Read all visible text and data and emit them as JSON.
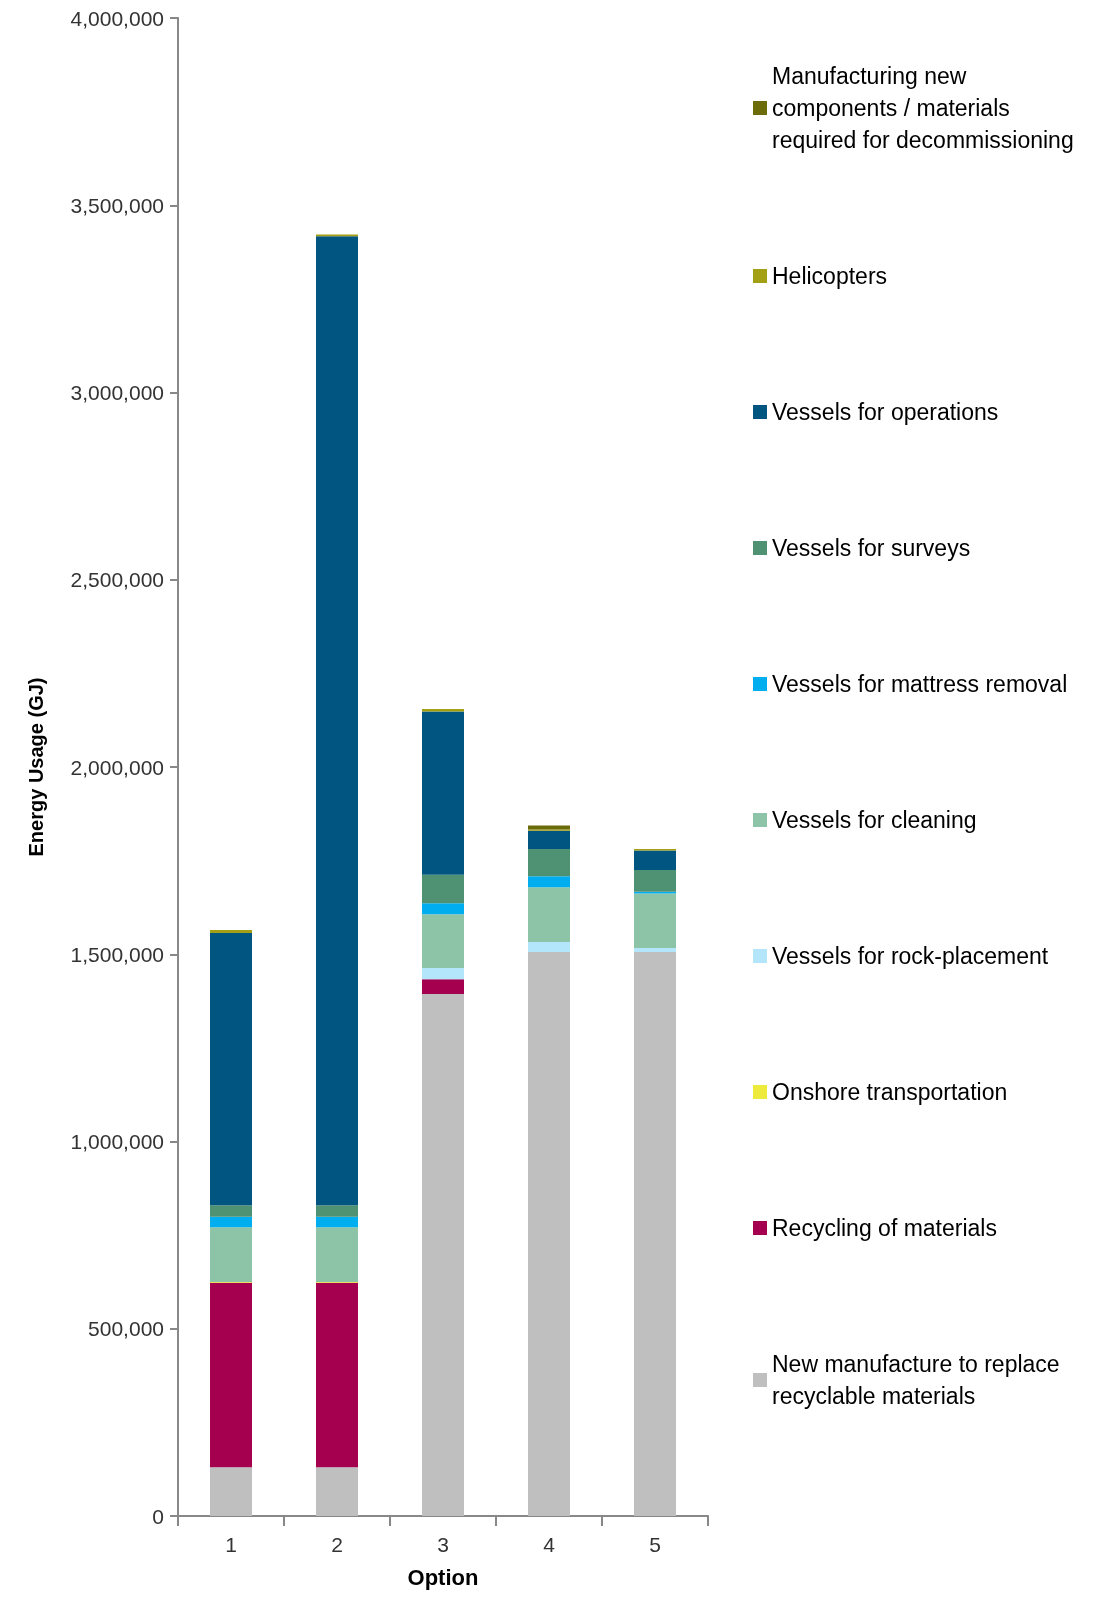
{
  "chart_data": {
    "type": "bar",
    "stacked": true,
    "xlabel": "Option",
    "ylabel": "Energy Usage (GJ)",
    "categories": [
      "1",
      "2",
      "3",
      "4",
      "5"
    ],
    "ylim": [
      0,
      4000000
    ],
    "yticks": [
      0,
      {
        "value": 500000,
        "label": "500,000"
      },
      {
        "value": 1000000,
        "label": "1,000,000"
      },
      {
        "value": 1500000,
        "label": "1,500,000"
      },
      {
        "value": 2000000,
        "label": "2,000,000"
      },
      {
        "value": 2500000,
        "label": "2,500,000"
      },
      {
        "value": 3000000,
        "label": "3,000,000"
      },
      {
        "value": 3500000,
        "label": "3,500,000"
      },
      {
        "value": 4000000,
        "label": "4,000,000"
      }
    ],
    "grid": false,
    "legend": "right",
    "series": [
      {
        "name": "New manufacture to replace recyclable materials",
        "color": "#bfbfbf",
        "values": [
          130000,
          130000,
          1394000,
          1506000,
          1506000
        ]
      },
      {
        "name": "Recycling of materials",
        "color": "#a50050",
        "values": [
          493000,
          493000,
          39000,
          0,
          0
        ]
      },
      {
        "name": "Onshore transportation",
        "color": "#eeea3c",
        "values": [
          2000,
          2000,
          0,
          0,
          0
        ]
      },
      {
        "name": "Vessels for rock-placement",
        "color": "#b3e5fb",
        "values": [
          0,
          0,
          30000,
          27000,
          11000
        ]
      },
      {
        "name": "Vessels for cleaning",
        "color": "#8dc3a6",
        "values": [
          146000,
          146000,
          144000,
          146000,
          145000
        ]
      },
      {
        "name": "Vessels for mattress removal",
        "color": "#00aeef",
        "values": [
          28000,
          28000,
          29000,
          29000,
          5000
        ]
      },
      {
        "name": "Vessels for surveys",
        "color": "#4e9273",
        "values": [
          31000,
          31000,
          76000,
          73000,
          58000
        ]
      },
      {
        "name": "Vessels for operations",
        "color": "#005581",
        "values": [
          727000,
          2587000,
          436000,
          49000,
          52000
        ]
      },
      {
        "name": "Helicopters",
        "color": "#a3a016",
        "values": [
          8000,
          5000,
          7000,
          3000,
          4000
        ]
      },
      {
        "name": "Manufacturing new components / materials required for decommissioning",
        "color": "#6b6b0a",
        "values": [
          0,
          0,
          0,
          11000,
          0
        ]
      }
    ]
  }
}
